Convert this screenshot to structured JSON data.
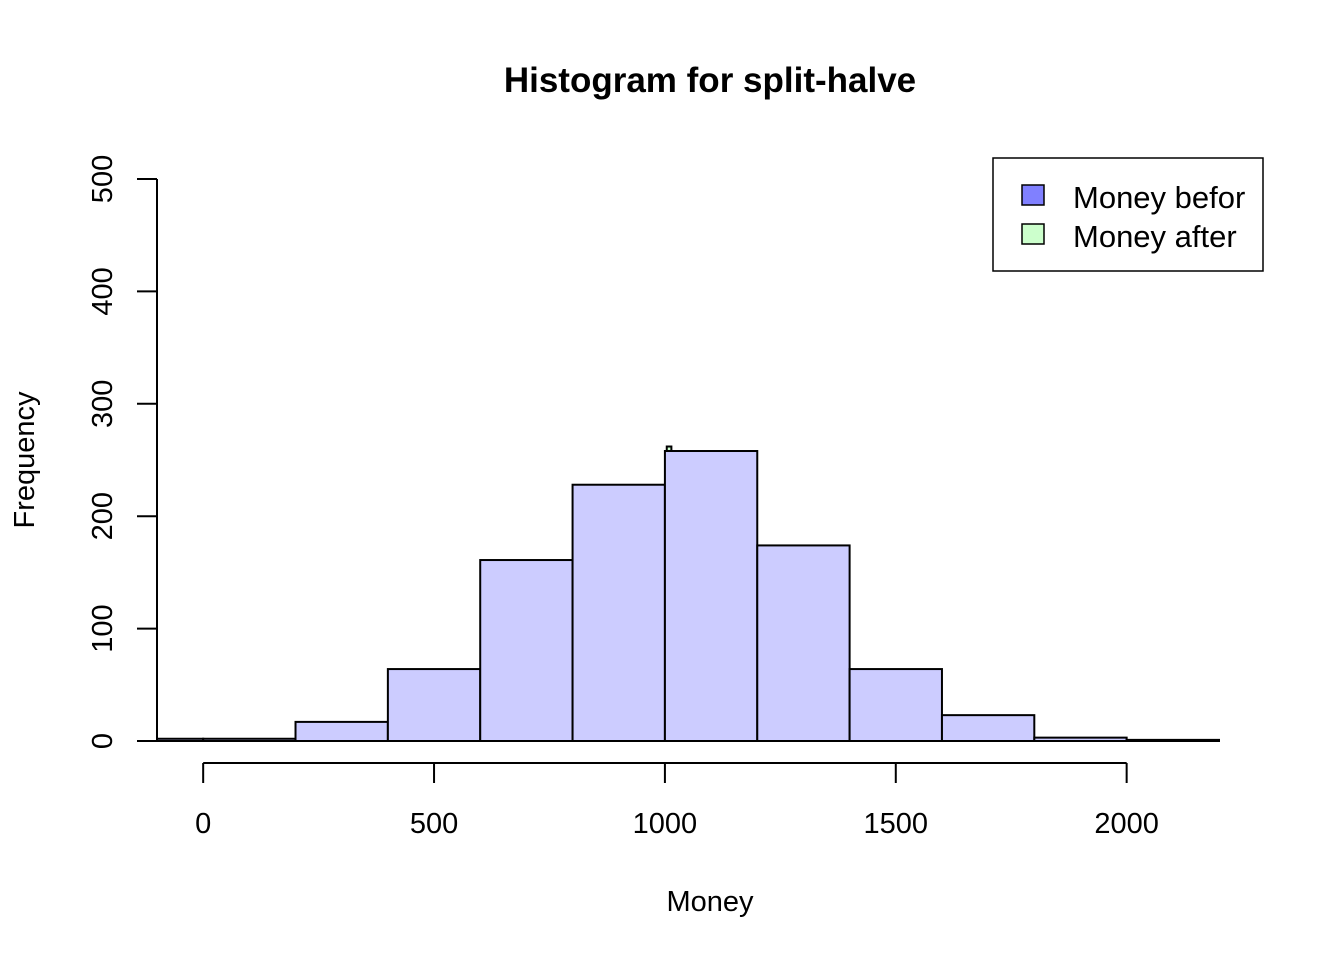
{
  "chart_data": {
    "type": "bar",
    "title": "Histogram for split-halve",
    "xlabel": "Money",
    "ylabel": "Frequency",
    "xlim": [
      -100,
      2200
    ],
    "ylim": [
      0,
      500
    ],
    "x_ticks": [
      0,
      500,
      1000,
      1500,
      2000
    ],
    "y_ticks": [
      0,
      100,
      200,
      300,
      400,
      500
    ],
    "series": [
      {
        "name": "Money befor",
        "color": "#8080ff",
        "bins": [
          {
            "x0": -200,
            "x1": 0,
            "count": 2
          },
          {
            "x0": 0,
            "x1": 200,
            "count": 2
          },
          {
            "x0": 200,
            "x1": 400,
            "count": 17
          },
          {
            "x0": 400,
            "x1": 600,
            "count": 64
          },
          {
            "x0": 600,
            "x1": 800,
            "count": 161
          },
          {
            "x0": 800,
            "x1": 1000,
            "count": 228
          },
          {
            "x0": 1000,
            "x1": 1200,
            "count": 258
          },
          {
            "x0": 1200,
            "x1": 1400,
            "count": 174
          },
          {
            "x0": 1400,
            "x1": 1600,
            "count": 64
          },
          {
            "x0": 1600,
            "x1": 1800,
            "count": 23
          },
          {
            "x0": 1800,
            "x1": 2000,
            "count": 3
          },
          {
            "x0": 2000,
            "x1": 2200,
            "count": 1
          }
        ]
      },
      {
        "name": "Money after",
        "color": "#ccffcc",
        "bins": [
          {
            "x0": 1004,
            "x1": 1014,
            "count": 262
          }
        ]
      }
    ],
    "fill_color": "#ccccff",
    "legend_position": "top-right"
  }
}
